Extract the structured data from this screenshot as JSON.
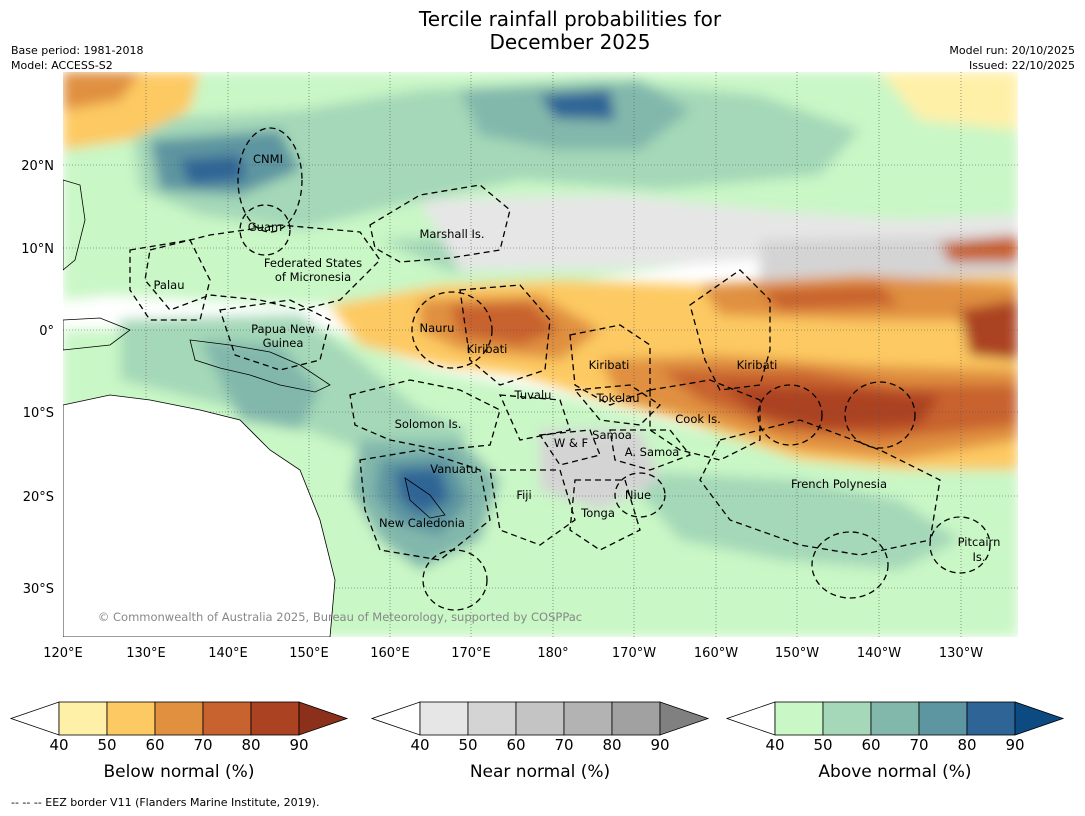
{
  "title_line1": "Tercile rainfall probabilities for",
  "title_line2": "December 2025",
  "meta": {
    "base_period": "Base period: 1981-2018",
    "model": "Model: ACCESS-S2",
    "model_run": "Model run: 20/10/2025",
    "issued": "Issued: 22/10/2025"
  },
  "copyright": "© Commonwealth of Australia 2025, Bureau of Meteorology, supported by COSPPac",
  "footer": "--  --  -- EEZ border V11 (Flanders Marine Institute, 2019).",
  "axes": {
    "lon_labels": [
      "120°E",
      "130°E",
      "140°E",
      "150°E",
      "160°E",
      "170°E",
      "180°",
      "170°W",
      "160°W",
      "150°W",
      "140°W",
      "130°W"
    ],
    "lat_labels": [
      "20°N",
      "10°N",
      "0°",
      "10°S",
      "20°S",
      "30°S"
    ]
  },
  "regions": [
    "CNMI",
    "Guam",
    "Marshall Is.",
    "Federated States",
    "of Micronesia",
    "Palau",
    "Papua New",
    "Guinea",
    "Nauru",
    "Kiribati",
    "Kiribati",
    "Kiribati",
    "Tuvalu",
    "Tokelau",
    "Cook Is.",
    "Solomon Is.",
    "W & F",
    "Samoa",
    "A. Samoa",
    "Vanuatu",
    "Fiji",
    "Niue",
    "Tonga",
    "French Polynesia",
    "New Caledonia",
    "Pitcairn",
    "Is."
  ],
  "colorbars": [
    {
      "label": "Below normal (%)",
      "ticks": [
        "40",
        "50",
        "60",
        "70",
        "80",
        "90"
      ],
      "colors": [
        "#fff0a8",
        "#fdc962",
        "#e0903f",
        "#c8622f",
        "#ab4322",
        "#8c2f1b"
      ]
    },
    {
      "label": "Near normal (%)",
      "ticks": [
        "40",
        "50",
        "60",
        "70",
        "80",
        "90"
      ],
      "colors": [
        "#e6e6e6",
        "#d4d4d4",
        "#c4c4c4",
        "#b3b3b3",
        "#a1a1a1",
        "#808080"
      ]
    },
    {
      "label": "Above normal (%)",
      "ticks": [
        "40",
        "50",
        "60",
        "70",
        "80",
        "90"
      ],
      "colors": [
        "#c9f7c6",
        "#a4d8b8",
        "#82b8ac",
        "#5d95a0",
        "#2f6596",
        "#0c4a82"
      ]
    }
  ]
}
